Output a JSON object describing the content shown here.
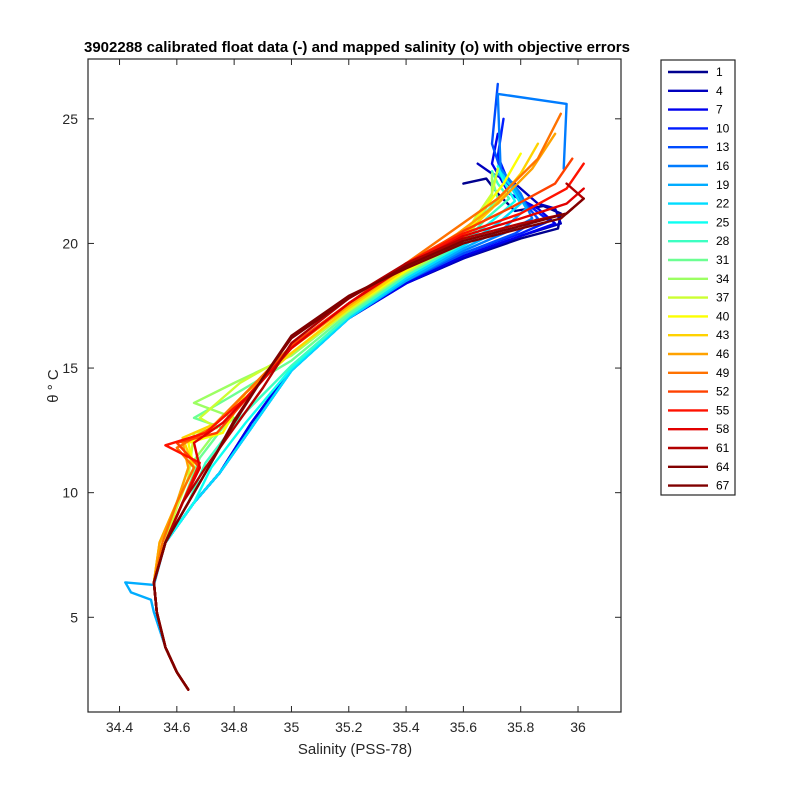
{
  "chart_data": {
    "type": "line",
    "title": "3902288 calibrated float data (-) and mapped salinity (o) with objective errors",
    "xlabel": "Salinity (PSS-78)",
    "ylabel": "θ ° C",
    "xlim": [
      34.29,
      36.15
    ],
    "ylim": [
      1.2,
      27.4
    ],
    "xticks": [
      34.4,
      34.6,
      34.8,
      35,
      35.2,
      35.4,
      35.6,
      35.8,
      36
    ],
    "xtick_labels": [
      "34.4",
      "34.6",
      "34.8",
      "35",
      "35.2",
      "35.4",
      "35.6",
      "35.8",
      "36"
    ],
    "yticks": [
      5,
      10,
      15,
      20,
      25
    ],
    "ytick_labels": [
      "5",
      "10",
      "15",
      "20",
      "25"
    ],
    "grid": false,
    "legend_position": "outside-right",
    "colormap": "jet",
    "series": [
      {
        "name": "1",
        "color": "#00008F",
        "x": [
          34.64,
          34.6,
          34.56,
          34.53,
          34.52,
          34.56,
          34.66,
          34.75,
          34.86,
          35.0,
          35.2,
          35.4,
          35.6,
          35.8,
          35.93,
          35.94,
          35.88,
          35.78,
          35.72,
          35.68,
          35.6
        ],
        "y": [
          2.1,
          2.8,
          3.8,
          5.2,
          6.4,
          8.0,
          9.6,
          10.8,
          12.8,
          15.0,
          17.0,
          18.4,
          19.4,
          20.2,
          20.6,
          21.2,
          21.5,
          21.3,
          22.0,
          22.6,
          22.4
        ]
      },
      {
        "name": "4",
        "color": "#0000BE",
        "x": [
          34.64,
          34.6,
          34.56,
          34.53,
          34.52,
          34.56,
          34.66,
          34.75,
          34.86,
          35.0,
          35.2,
          35.4,
          35.6,
          35.8,
          35.94,
          35.92,
          35.86,
          35.78,
          35.7,
          35.65
        ],
        "y": [
          2.1,
          2.8,
          3.8,
          5.2,
          6.4,
          8.0,
          9.6,
          10.8,
          12.8,
          15.0,
          17.0,
          18.4,
          19.4,
          20.3,
          20.8,
          21.4,
          21.6,
          22.4,
          22.8,
          23.2
        ]
      },
      {
        "name": "7",
        "color": "#0000EE",
        "x": [
          34.64,
          34.6,
          34.56,
          34.53,
          34.52,
          34.56,
          34.66,
          34.75,
          34.86,
          35.0,
          35.2,
          35.4,
          35.6,
          35.8,
          35.92,
          35.86,
          35.76,
          35.7,
          35.72
        ],
        "y": [
          2.1,
          2.8,
          3.8,
          5.2,
          6.4,
          8.0,
          9.6,
          10.8,
          12.8,
          15.0,
          17.0,
          18.4,
          19.5,
          20.3,
          20.8,
          21.4,
          22.0,
          23.2,
          24.4
        ]
      },
      {
        "name": "10",
        "color": "#001CFF",
        "x": [
          34.64,
          34.6,
          34.56,
          34.53,
          34.52,
          34.56,
          34.66,
          34.75,
          34.86,
          35.0,
          35.2,
          35.4,
          35.6,
          35.8,
          35.9,
          35.82,
          35.76,
          35.72,
          35.74
        ],
        "y": [
          2.1,
          2.8,
          3.8,
          5.2,
          6.4,
          8.0,
          9.6,
          10.8,
          12.6,
          14.9,
          17.0,
          18.5,
          19.6,
          20.4,
          20.9,
          21.6,
          22.4,
          23.5,
          25.0
        ]
      },
      {
        "name": "13",
        "color": "#004CFF",
        "x": [
          34.64,
          34.6,
          34.56,
          34.53,
          34.52,
          34.56,
          34.66,
          34.75,
          34.86,
          35.0,
          35.2,
          35.4,
          35.6,
          35.78,
          35.86,
          35.8,
          35.74,
          35.7,
          35.72
        ],
        "y": [
          2.1,
          2.8,
          3.8,
          5.2,
          6.4,
          8.0,
          9.6,
          10.8,
          12.6,
          14.9,
          17.0,
          18.5,
          19.6,
          20.4,
          21.0,
          21.8,
          22.6,
          24.0,
          26.4
        ]
      },
      {
        "name": "16",
        "color": "#007CFF",
        "x": [
          34.64,
          34.6,
          34.56,
          34.53,
          34.52,
          34.56,
          34.66,
          34.75,
          34.86,
          35.0,
          35.2,
          35.4,
          35.6,
          35.76,
          35.84,
          35.8,
          35.73,
          35.72,
          35.96,
          35.95
        ],
        "y": [
          2.1,
          2.8,
          3.8,
          5.2,
          6.4,
          8.0,
          9.6,
          10.8,
          12.6,
          14.9,
          17.0,
          18.5,
          19.7,
          20.5,
          21.0,
          22.0,
          23.0,
          26.0,
          25.6,
          23.0
        ]
      },
      {
        "name": "19",
        "color": "#00ACFF",
        "x": [
          34.64,
          34.6,
          34.56,
          34.52,
          34.51,
          34.44,
          34.42,
          34.52,
          34.56,
          34.66,
          34.75,
          34.86,
          35.0,
          35.2,
          35.4,
          35.6,
          35.74,
          35.82,
          35.78,
          35.72
        ],
        "y": [
          2.1,
          2.8,
          3.8,
          5.2,
          5.7,
          6.0,
          6.4,
          6.3,
          8.0,
          9.6,
          10.8,
          12.6,
          14.9,
          17.0,
          18.5,
          19.8,
          20.6,
          21.4,
          22.2,
          22.8
        ]
      },
      {
        "name": "22",
        "color": "#00DCFF",
        "x": [
          34.64,
          34.6,
          34.56,
          34.53,
          34.52,
          34.56,
          34.66,
          34.75,
          34.86,
          35.0,
          35.2,
          35.4,
          35.6,
          35.72,
          35.8,
          35.76,
          35.72
        ],
        "y": [
          2.1,
          2.8,
          3.8,
          5.2,
          6.4,
          8.0,
          9.6,
          10.8,
          12.6,
          14.9,
          17.0,
          18.6,
          19.9,
          20.8,
          21.6,
          22.4,
          23.0
        ]
      },
      {
        "name": "25",
        "color": "#0CFFF2",
        "x": [
          34.64,
          34.6,
          34.56,
          34.53,
          34.52,
          34.56,
          34.66,
          34.72,
          34.84,
          35.0,
          35.2,
          35.4,
          35.6,
          35.7,
          35.78,
          35.74,
          35.72
        ],
        "y": [
          2.1,
          2.8,
          3.8,
          5.2,
          6.4,
          8.0,
          9.6,
          11.0,
          12.8,
          15.0,
          17.1,
          18.7,
          20.0,
          20.9,
          21.7,
          22.5,
          23.1
        ]
      },
      {
        "name": "28",
        "color": "#3CFFC2",
        "x": [
          34.64,
          34.6,
          34.56,
          34.53,
          34.52,
          34.56,
          34.64,
          34.7,
          34.82,
          35.0,
          35.2,
          35.4,
          35.6,
          35.68,
          35.76,
          35.72,
          35.7
        ],
        "y": [
          2.1,
          2.8,
          3.8,
          5.2,
          6.4,
          8.0,
          9.6,
          11.2,
          13.0,
          15.1,
          17.1,
          18.7,
          20.0,
          21.0,
          21.8,
          22.4,
          22.9
        ]
      },
      {
        "name": "31",
        "color": "#6CFF92",
        "x": [
          34.64,
          34.6,
          34.56,
          34.53,
          34.52,
          34.56,
          34.62,
          34.68,
          34.76,
          34.66,
          34.78,
          35.0,
          35.2,
          35.4,
          35.6,
          35.66,
          35.72,
          35.7
        ],
        "y": [
          2.1,
          2.8,
          3.8,
          5.2,
          6.4,
          8.0,
          9.6,
          11.4,
          12.6,
          13.0,
          13.8,
          15.3,
          17.2,
          18.8,
          20.1,
          21.0,
          21.8,
          22.6
        ]
      },
      {
        "name": "34",
        "color": "#9CFF62",
        "x": [
          34.64,
          34.6,
          34.56,
          34.53,
          34.52,
          34.56,
          34.6,
          34.64,
          34.72,
          34.8,
          34.66,
          34.8,
          35.0,
          35.2,
          35.4,
          35.6,
          35.66,
          35.7,
          35.7
        ],
        "y": [
          2.1,
          2.8,
          3.8,
          5.2,
          6.4,
          8.0,
          9.6,
          11.0,
          12.2,
          13.0,
          13.6,
          14.4,
          15.5,
          17.3,
          18.8,
          20.1,
          21.0,
          21.9,
          22.8
        ]
      },
      {
        "name": "37",
        "color": "#CCFF32",
        "x": [
          34.64,
          34.6,
          34.56,
          34.53,
          34.52,
          34.56,
          34.6,
          34.64,
          34.66,
          34.74,
          34.68,
          34.82,
          35.0,
          35.2,
          35.4,
          35.6,
          35.64,
          35.7,
          35.72
        ],
        "y": [
          2.1,
          2.8,
          3.8,
          5.2,
          6.4,
          8.0,
          9.4,
          10.6,
          12.4,
          12.6,
          13.0,
          14.4,
          15.6,
          17.3,
          18.9,
          20.2,
          21.0,
          22.0,
          23.0
        ]
      },
      {
        "name": "40",
        "color": "#FCFF02",
        "x": [
          34.64,
          34.6,
          34.56,
          34.53,
          34.52,
          34.54,
          34.6,
          34.66,
          34.64,
          34.76,
          34.84,
          35.0,
          35.2,
          35.4,
          35.6,
          35.66,
          35.74,
          35.8
        ],
        "y": [
          2.1,
          2.8,
          3.8,
          5.2,
          6.4,
          8.0,
          9.6,
          11.0,
          12.0,
          12.4,
          14.0,
          15.6,
          17.4,
          18.9,
          20.2,
          21.2,
          22.4,
          23.6
        ]
      },
      {
        "name": "43",
        "color": "#FFD200",
        "x": [
          34.64,
          34.6,
          34.56,
          34.53,
          34.52,
          34.54,
          34.6,
          34.66,
          34.62,
          34.74,
          34.84,
          35.0,
          35.2,
          35.4,
          35.6,
          35.7,
          35.8,
          35.86
        ],
        "y": [
          2.1,
          2.8,
          3.8,
          5.2,
          6.4,
          8.0,
          9.6,
          11.0,
          12.2,
          12.8,
          14.0,
          15.6,
          17.4,
          19.0,
          20.3,
          21.4,
          22.8,
          24.0
        ]
      },
      {
        "name": "46",
        "color": "#FFA200",
        "x": [
          34.64,
          34.6,
          34.56,
          34.53,
          34.52,
          34.54,
          34.6,
          34.64,
          34.62,
          34.72,
          34.84,
          35.0,
          35.2,
          35.4,
          35.58,
          35.72,
          35.84,
          35.92
        ],
        "y": [
          2.1,
          2.8,
          3.8,
          5.2,
          6.4,
          8.0,
          9.6,
          11.0,
          12.0,
          12.6,
          14.0,
          15.8,
          17.5,
          19.1,
          20.4,
          21.6,
          23.0,
          24.4
        ]
      },
      {
        "name": "49",
        "color": "#FF7200",
        "x": [
          34.64,
          34.6,
          34.56,
          34.53,
          34.52,
          34.55,
          34.6,
          34.66,
          34.6,
          34.72,
          34.84,
          35.0,
          35.2,
          35.4,
          35.56,
          35.72,
          35.86,
          35.94
        ],
        "y": [
          2.1,
          2.8,
          3.8,
          5.2,
          6.4,
          8.0,
          9.6,
          11.0,
          11.8,
          12.6,
          14.0,
          15.9,
          17.6,
          19.2,
          20.5,
          21.8,
          23.4,
          25.2
        ]
      },
      {
        "name": "52",
        "color": "#FF4200",
        "x": [
          34.64,
          34.6,
          34.56,
          34.53,
          34.52,
          34.56,
          34.62,
          34.68,
          34.6,
          34.74,
          34.86,
          35.0,
          35.2,
          35.4,
          35.6,
          35.76,
          35.92,
          35.98
        ],
        "y": [
          2.1,
          2.8,
          3.8,
          5.2,
          6.4,
          8.0,
          9.6,
          11.0,
          12.0,
          12.4,
          14.0,
          15.9,
          17.6,
          19.2,
          20.5,
          21.4,
          22.4,
          23.4
        ]
      },
      {
        "name": "55",
        "color": "#FF1200",
        "x": [
          34.64,
          34.6,
          34.56,
          34.53,
          34.52,
          34.56,
          34.62,
          34.68,
          34.56,
          34.7,
          34.84,
          35.0,
          35.2,
          35.4,
          35.6,
          35.8,
          35.96,
          36.02
        ],
        "y": [
          2.1,
          2.8,
          3.8,
          5.2,
          6.4,
          8.0,
          9.6,
          11.2,
          11.9,
          12.4,
          13.8,
          15.8,
          17.6,
          19.2,
          20.4,
          21.2,
          22.2,
          23.2
        ]
      },
      {
        "name": "58",
        "color": "#E20000",
        "x": [
          34.64,
          34.6,
          34.56,
          34.53,
          34.52,
          34.56,
          34.62,
          34.68,
          34.66,
          34.76,
          34.86,
          35.0,
          35.2,
          35.4,
          35.6,
          35.8,
          35.96,
          36.02
        ],
        "y": [
          2.1,
          2.8,
          3.8,
          5.2,
          6.4,
          8.0,
          9.6,
          11.0,
          12.0,
          12.8,
          14.0,
          15.8,
          17.6,
          19.1,
          20.3,
          21.0,
          21.6,
          22.2
        ]
      },
      {
        "name": "61",
        "color": "#B20000",
        "x": [
          34.64,
          34.6,
          34.56,
          34.53,
          34.52,
          34.56,
          34.62,
          34.7,
          34.8,
          34.9,
          35.0,
          35.2,
          35.4,
          35.6,
          35.8,
          35.96,
          36.02,
          35.96
        ],
        "y": [
          2.1,
          2.8,
          3.8,
          5.2,
          6.4,
          8.0,
          9.6,
          11.0,
          12.6,
          14.2,
          16.0,
          17.8,
          19.2,
          20.2,
          20.8,
          21.2,
          21.8,
          22.4
        ]
      },
      {
        "name": "64",
        "color": "#820000",
        "x": [
          34.64,
          34.6,
          34.56,
          34.53,
          34.52,
          34.56,
          34.64,
          34.72,
          34.8,
          34.9,
          35.0,
          35.2,
          35.4,
          35.6,
          35.8,
          35.96,
          36.02
        ],
        "y": [
          2.1,
          2.8,
          3.8,
          5.2,
          6.4,
          8.0,
          9.6,
          11.2,
          12.8,
          14.6,
          16.2,
          17.8,
          19.1,
          20.1,
          20.7,
          21.2,
          21.8
        ]
      },
      {
        "name": "67",
        "color": "#800000",
        "x": [
          34.64,
          34.6,
          34.56,
          34.53,
          34.52,
          34.56,
          34.64,
          34.72,
          34.8,
          34.9,
          35.0,
          35.2,
          35.4,
          35.6,
          35.8,
          35.94,
          35.98
        ],
        "y": [
          2.1,
          2.8,
          3.8,
          5.2,
          6.4,
          8.0,
          9.6,
          11.2,
          12.9,
          14.6,
          16.3,
          17.9,
          19.0,
          20.0,
          20.6,
          21.0,
          21.4
        ]
      }
    ]
  }
}
